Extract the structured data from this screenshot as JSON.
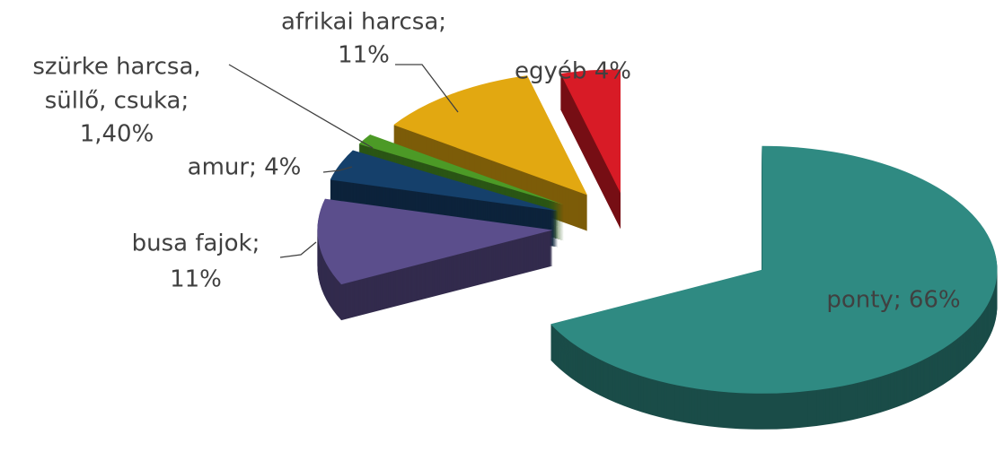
{
  "chart_data": {
    "type": "pie3d",
    "labels": [
      [
        "ponty; 66%"
      ],
      [
        "busa fajok;",
        "11%"
      ],
      [
        "amur; 4%"
      ],
      [
        "szürke harcsa,",
        "süllő, csuka;",
        "1,40%"
      ],
      [
        "afrikai harcsa;",
        "11%"
      ],
      [
        "egyéb  4%"
      ]
    ],
    "values": [
      66,
      11,
      4,
      1.4,
      11,
      4
    ],
    "colors": [
      "#2f8a82",
      "#5b4e8c",
      "#15406b",
      "#4c9a26",
      "#e2a811",
      "#d81b26"
    ]
  }
}
